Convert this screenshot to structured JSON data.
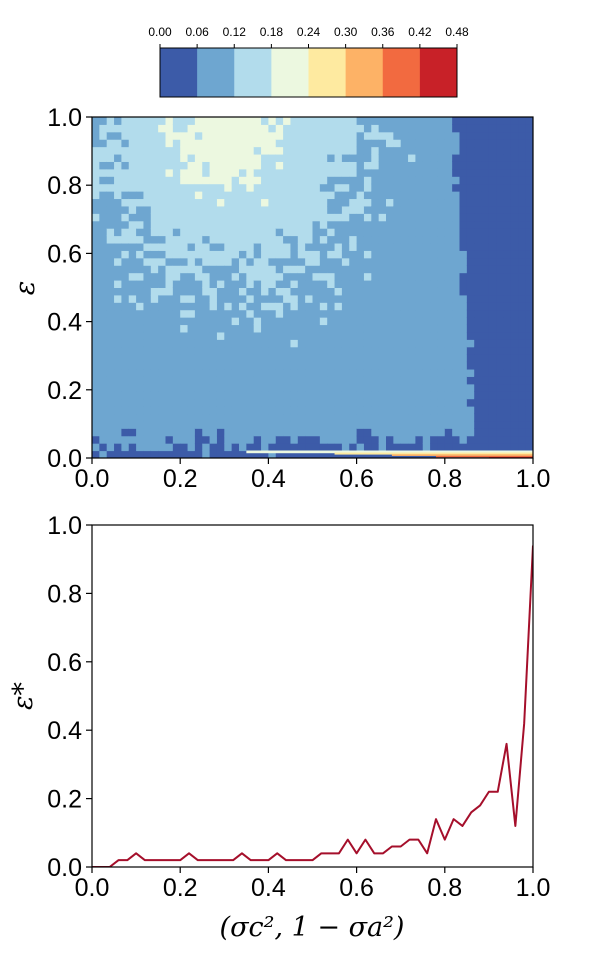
{
  "colorbar": {
    "ticks": [
      "0.00",
      "0.06",
      "0.12",
      "0.18",
      "0.24",
      "0.30",
      "0.36",
      "0.42",
      "0.48"
    ],
    "colors": [
      "#3c5ba8",
      "#6ea6d0",
      "#b2dcec",
      "#ecf8e0",
      "#feeaa0",
      "#fdb266",
      "#f26a40",
      "#c82128"
    ]
  },
  "chart_data": [
    {
      "type": "heatmap",
      "title": "",
      "xlabel": "",
      "ylabel": "ε",
      "xlim": [
        0.0,
        1.0
      ],
      "ylim": [
        0.0,
        1.0
      ],
      "xticks": [
        "0.0",
        "0.2",
        "0.4",
        "0.6",
        "0.8",
        "1.0"
      ],
      "yticks": [
        "0.0",
        "0.2",
        "0.4",
        "0.6",
        "0.8",
        "1.0"
      ],
      "levels": [
        0.0,
        0.06,
        0.12,
        0.18,
        0.24,
        0.3,
        0.36,
        0.42,
        0.48
      ],
      "regions": [
        {
          "level_range": [
            0.0,
            0.06
          ],
          "description_value": "dominant for x > 0.85 at all ε and for ε < 0.08 at most x"
        },
        {
          "level_range": [
            0.06,
            0.12
          ],
          "description_value": "band surrounding central region"
        },
        {
          "level_range": [
            0.12,
            0.18
          ],
          "description_value": "central region, x ≈ 0 to 0.7, ε ≈ 0.3 to 1.0"
        },
        {
          "level_range": [
            0.18,
            0.24
          ],
          "description_value": "patches near top, x ≈ 0.15 to 0.45, ε > 0.75"
        },
        {
          "level_range": [
            0.24,
            0.48
          ],
          "description_value": "thin strip at ε ≈ 0 for x > 0.7"
        }
      ]
    },
    {
      "type": "line",
      "title": "",
      "xlabel": "(σc², 1 − σa²)",
      "ylabel": "ε*",
      "xlim": [
        0.0,
        1.0
      ],
      "ylim": [
        0.0,
        1.0
      ],
      "xticks": [
        "0.0",
        "0.2",
        "0.4",
        "0.6",
        "0.8",
        "1.0"
      ],
      "yticks": [
        "0.0",
        "0.2",
        "0.4",
        "0.6",
        "0.8",
        "1.0"
      ],
      "color": "#a50f2b",
      "x": [
        0.0,
        0.02,
        0.04,
        0.06,
        0.08,
        0.1,
        0.12,
        0.14,
        0.16,
        0.18,
        0.2,
        0.22,
        0.24,
        0.26,
        0.28,
        0.3,
        0.32,
        0.34,
        0.36,
        0.38,
        0.4,
        0.42,
        0.44,
        0.46,
        0.48,
        0.5,
        0.52,
        0.54,
        0.56,
        0.58,
        0.6,
        0.62,
        0.64,
        0.66,
        0.68,
        0.7,
        0.72,
        0.74,
        0.76,
        0.78,
        0.8,
        0.82,
        0.84,
        0.86,
        0.88,
        0.9,
        0.92,
        0.94,
        0.96,
        0.98,
        1.0
      ],
      "y": [
        0.0,
        0.0,
        0.0,
        0.02,
        0.02,
        0.04,
        0.02,
        0.02,
        0.02,
        0.02,
        0.02,
        0.04,
        0.02,
        0.02,
        0.02,
        0.02,
        0.02,
        0.04,
        0.02,
        0.02,
        0.02,
        0.04,
        0.02,
        0.02,
        0.02,
        0.02,
        0.04,
        0.04,
        0.04,
        0.08,
        0.04,
        0.08,
        0.04,
        0.04,
        0.06,
        0.06,
        0.08,
        0.08,
        0.04,
        0.14,
        0.08,
        0.14,
        0.12,
        0.16,
        0.18,
        0.22,
        0.22,
        0.36,
        0.12,
        0.42,
        0.94
      ]
    }
  ]
}
